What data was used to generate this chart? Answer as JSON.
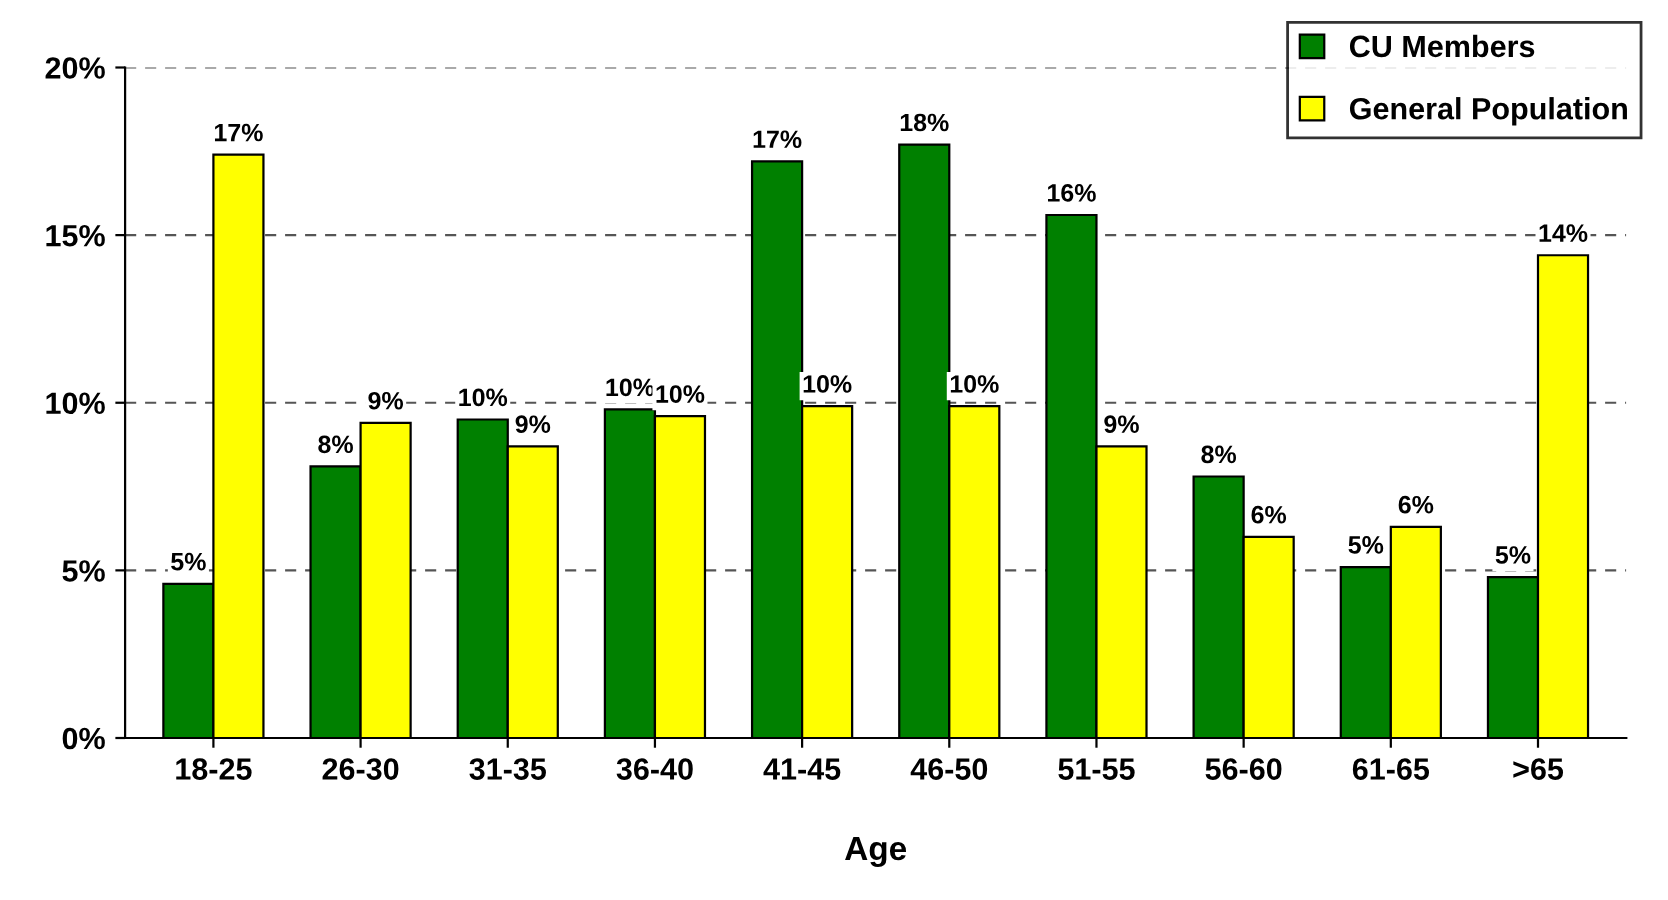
{
  "chart_data": {
    "type": "bar",
    "xlabel": "Age",
    "categories": [
      "18-25",
      "26-30",
      "31-35",
      "36-40",
      "41-45",
      "46-50",
      "51-55",
      "56-60",
      "61-65",
      ">65"
    ],
    "series": [
      {
        "name": "CU Members",
        "color": "#008000",
        "values": [
          4.6,
          8.1,
          9.5,
          9.8,
          17.2,
          17.7,
          15.6,
          7.8,
          5.1,
          4.8
        ],
        "value_labels": [
          "5%",
          "8%",
          "10%",
          "10%",
          "17%",
          "18%",
          "16%",
          "8%",
          "5%",
          "5%"
        ]
      },
      {
        "name": "General Population",
        "color": "#ffff00",
        "values": [
          17.4,
          9.4,
          8.7,
          9.6,
          9.9,
          9.9,
          8.7,
          6.0,
          6.3,
          14.4
        ],
        "value_labels": [
          "17%",
          "9%",
          "9%",
          "10%",
          "10%",
          "10%",
          "9%",
          "6%",
          "6%",
          "14%"
        ]
      }
    ],
    "ylim": [
      0,
      20
    ],
    "yticks": [
      {
        "value": 0,
        "label": "0%"
      },
      {
        "value": 5,
        "label": "5%"
      },
      {
        "value": 10,
        "label": "10%"
      },
      {
        "value": 15,
        "label": "15%"
      },
      {
        "value": 20,
        "label": "20%"
      }
    ],
    "grid": "y",
    "legend": "top right"
  }
}
